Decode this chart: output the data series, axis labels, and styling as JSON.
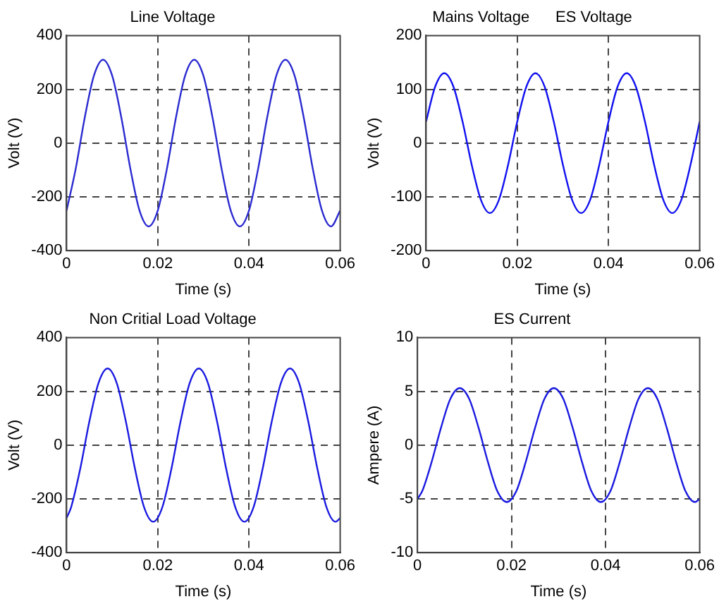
{
  "chart_data": [
    {
      "type": "line",
      "title": "Line Voltage",
      "xlabel": "Time (s)",
      "ylabel": "Volt (V)",
      "xlim": [
        0,
        0.06
      ],
      "xticks": [
        0,
        0.02,
        0.04,
        0.06
      ],
      "ylim": [
        -400,
        400
      ],
      "yticks": [
        -400,
        -200,
        0,
        200,
        400
      ],
      "grid": true,
      "marker": "none",
      "line_style": "solid",
      "series": [
        {
          "color": "#2a2ad0",
          "x": [
            0,
            0.002,
            0.004,
            0.006,
            0.008,
            0.01,
            0.012,
            0.014,
            0.016,
            0.018,
            0.02,
            0.022,
            0.024,
            0.026,
            0.028,
            0.03,
            0.032,
            0.034,
            0.036,
            0.038,
            0.04,
            0.042,
            0.044,
            0.046,
            0.048,
            0.05,
            0.052,
            0.054,
            0.056,
            0.058,
            0.06
          ],
          "values": [
            -251,
            -96,
            96,
            251,
            310,
            251,
            96,
            -96,
            -251,
            -310,
            -251,
            -96,
            96,
            251,
            310,
            251,
            96,
            -96,
            -251,
            -310,
            -251,
            -96,
            96,
            251,
            310,
            251,
            96,
            -96,
            -251,
            -310,
            -251
          ]
        }
      ]
    },
    {
      "type": "line",
      "title": "Mains Voltage      ES Voltage",
      "xlabel": "Time (s)",
      "ylabel": "Volt (V)",
      "xlim": [
        0,
        0.06
      ],
      "xticks": [
        0,
        0.02,
        0.04,
        0.06
      ],
      "ylim": [
        -200,
        200
      ],
      "yticks": [
        -200,
        -100,
        0,
        100,
        200
      ],
      "grid": true,
      "marker": "none",
      "line_style": "solid",
      "series": [
        {
          "color": "#1010f0",
          "x": [
            0,
            0.002,
            0.004,
            0.006,
            0.008,
            0.01,
            0.012,
            0.014,
            0.016,
            0.018,
            0.02,
            0.022,
            0.024,
            0.026,
            0.028,
            0.03,
            0.032,
            0.034,
            0.036,
            0.038,
            0.04,
            0.042,
            0.044,
            0.046,
            0.048,
            0.05,
            0.052,
            0.054,
            0.056,
            0.058,
            0.06
          ],
          "values": [
            40,
            105,
            130,
            105,
            40,
            -40,
            -105,
            -130,
            -105,
            -40,
            40,
            105,
            130,
            105,
            40,
            -40,
            -105,
            -130,
            -105,
            -40,
            40,
            105,
            130,
            105,
            40,
            -40,
            -105,
            -130,
            -105,
            -40,
            40
          ]
        }
      ]
    },
    {
      "type": "line",
      "title": "Non Critial Load Voltage",
      "xlabel": "Time (s)",
      "ylabel": "Volt (V)",
      "xlim": [
        0,
        0.06
      ],
      "xticks": [
        0,
        0.02,
        0.04,
        0.06
      ],
      "ylim": [
        -400,
        400
      ],
      "yticks": [
        -400,
        -200,
        0,
        200,
        400
      ],
      "grid": true,
      "marker": "none",
      "line_style": "solid",
      "series": [
        {
          "color": "#1a1ae0",
          "x": [
            0,
            0.001,
            0.003,
            0.005,
            0.007,
            0.009,
            0.011,
            0.013,
            0.015,
            0.017,
            0.019,
            0.021,
            0.023,
            0.025,
            0.027,
            0.029,
            0.031,
            0.033,
            0.035,
            0.037,
            0.039,
            0.041,
            0.043,
            0.045,
            0.047,
            0.049,
            0.051,
            0.053,
            0.055,
            0.057,
            0.059,
            0.06
          ],
          "values": [
            -271,
            -231,
            -88,
            88,
            231,
            285,
            231,
            88,
            -88,
            -231,
            -285,
            -231,
            -88,
            88,
            231,
            285,
            231,
            88,
            -88,
            -231,
            -285,
            -231,
            -88,
            88,
            231,
            285,
            231,
            88,
            -88,
            -231,
            -285,
            -271
          ]
        }
      ]
    },
    {
      "type": "line",
      "title": "ES Current",
      "xlabel": "Time (s)",
      "ylabel": "Ampere (A)",
      "xlim": [
        0,
        0.06
      ],
      "xticks": [
        0,
        0.02,
        0.04,
        0.06
      ],
      "ylim": [
        -10,
        10
      ],
      "yticks": [
        -10,
        -5,
        0,
        5,
        10
      ],
      "grid": true,
      "marker": "none",
      "line_style": "solid",
      "series": [
        {
          "color": "#1a1ae0",
          "x": [
            0,
            0.001,
            0.003,
            0.005,
            0.007,
            0.009,
            0.011,
            0.013,
            0.015,
            0.017,
            0.019,
            0.021,
            0.023,
            0.025,
            0.027,
            0.029,
            0.031,
            0.033,
            0.035,
            0.037,
            0.039,
            0.041,
            0.043,
            0.045,
            0.047,
            0.049,
            0.051,
            0.053,
            0.055,
            0.057,
            0.059,
            0.06
          ],
          "values": [
            -5.0,
            -4.3,
            -1.6,
            1.6,
            4.3,
            5.3,
            4.3,
            1.6,
            -1.6,
            -4.3,
            -5.3,
            -4.3,
            -1.6,
            1.6,
            4.3,
            5.3,
            4.3,
            1.6,
            -1.6,
            -4.3,
            -5.3,
            -4.3,
            -1.6,
            1.6,
            4.3,
            5.3,
            4.3,
            1.6,
            -1.6,
            -4.3,
            -5.3,
            -5.0
          ]
        }
      ]
    }
  ]
}
